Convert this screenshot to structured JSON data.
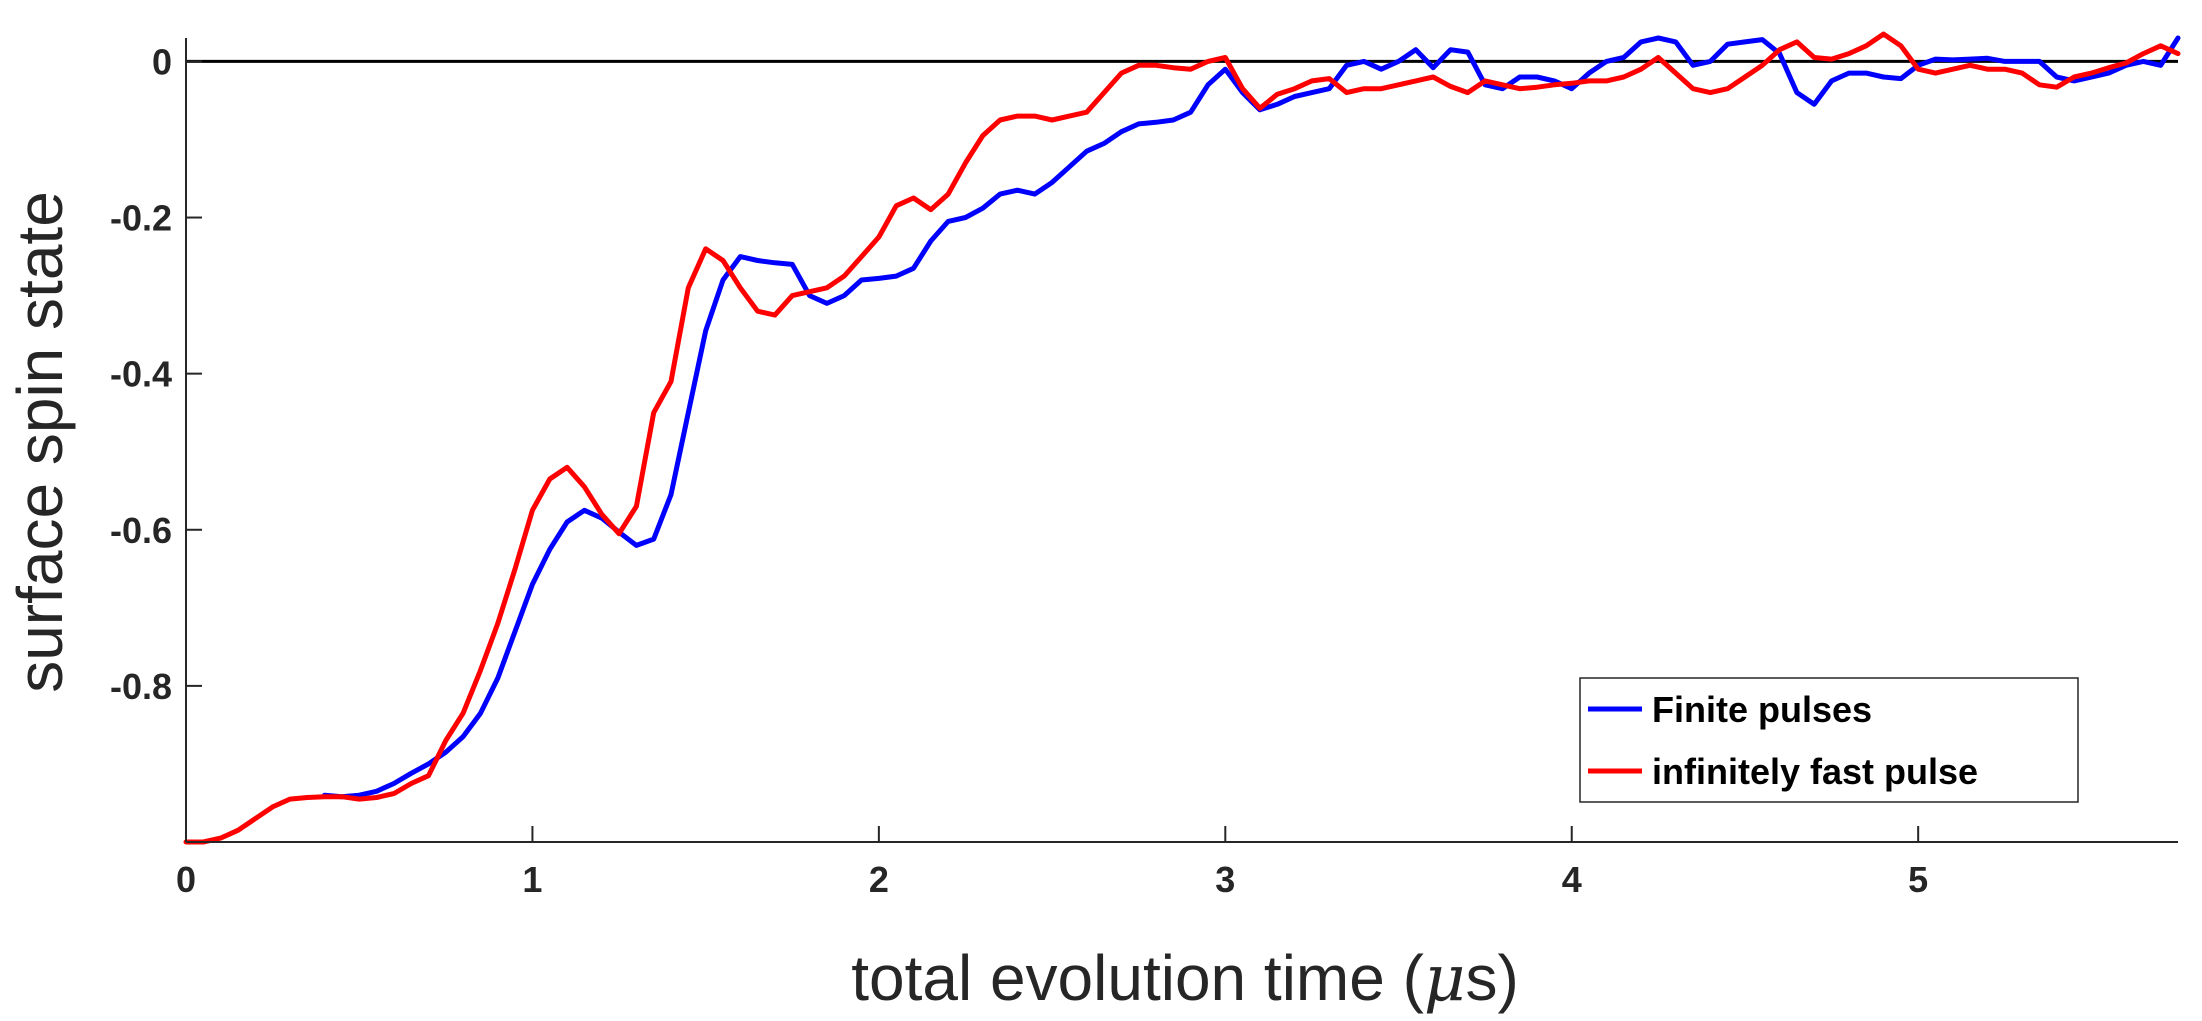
{
  "chart_data": {
    "type": "line",
    "xlabel_prefix": "total evolution time (",
    "xlabel_mu": "μ",
    "xlabel_suffix": "s)",
    "ylabel": "surface spin state",
    "xlim": [
      0,
      5.75
    ],
    "ylim": [
      -1.0,
      0.03
    ],
    "xticks": [
      0,
      1,
      2,
      3,
      4,
      5
    ],
    "xtick_labels": [
      "0",
      "1",
      "2",
      "3",
      "4",
      "5"
    ],
    "yticks": [
      0,
      -0.2,
      -0.4,
      -0.6,
      -0.8
    ],
    "ytick_labels": [
      "0",
      "-0.2",
      "-0.4",
      "-0.6",
      "-0.8"
    ],
    "reference_line_y": 0,
    "legend_position": "bottom-right",
    "series": [
      {
        "name": "Finite pulses",
        "color": "#0000ff",
        "x": [
          0.4,
          0.45,
          0.5,
          0.55,
          0.6,
          0.65,
          0.7,
          0.75,
          0.8,
          0.85,
          0.9,
          0.95,
          1.0,
          1.05,
          1.1,
          1.15,
          1.2,
          1.25,
          1.3,
          1.35,
          1.4,
          1.45,
          1.5,
          1.55,
          1.6,
          1.65,
          1.7,
          1.75,
          1.8,
          1.85,
          1.9,
          1.95,
          2.0,
          2.05,
          2.1,
          2.15,
          2.2,
          2.25,
          2.3,
          2.35,
          2.4,
          2.45,
          2.5,
          2.55,
          2.6,
          2.65,
          2.7,
          2.75,
          2.8,
          2.85,
          2.9,
          2.95,
          3.0,
          3.05,
          3.1,
          3.15,
          3.2,
          3.25,
          3.3,
          3.35,
          3.4,
          3.45,
          3.5,
          3.55,
          3.6,
          3.65,
          3.7,
          3.75,
          3.8,
          3.85,
          3.9,
          3.95,
          4.0,
          4.05,
          4.1,
          4.15,
          4.2,
          4.25,
          4.3,
          4.35,
          4.4,
          4.45,
          4.5,
          4.55,
          4.6,
          4.65,
          4.7,
          4.75,
          4.8,
          4.85,
          4.9,
          4.95,
          5.0,
          5.05,
          5.1,
          5.15,
          5.2,
          5.25,
          5.3,
          5.35,
          5.4,
          5.45,
          5.5,
          5.55,
          5.6,
          5.65,
          5.7,
          5.75
        ],
        "y": [
          -0.94,
          -0.942,
          -0.94,
          -0.935,
          -0.925,
          -0.912,
          -0.9,
          -0.885,
          -0.865,
          -0.835,
          -0.79,
          -0.73,
          -0.67,
          -0.625,
          -0.59,
          -0.575,
          -0.585,
          -0.603,
          -0.62,
          -0.612,
          -0.555,
          -0.45,
          -0.345,
          -0.28,
          -0.25,
          -0.255,
          -0.258,
          -0.26,
          -0.3,
          -0.31,
          -0.3,
          -0.28,
          -0.278,
          -0.275,
          -0.265,
          -0.23,
          -0.205,
          -0.2,
          -0.188,
          -0.17,
          -0.165,
          -0.17,
          -0.155,
          -0.135,
          -0.115,
          -0.105,
          -0.09,
          -0.08,
          -0.078,
          -0.075,
          -0.065,
          -0.03,
          -0.01,
          -0.04,
          -0.062,
          -0.055,
          -0.045,
          -0.04,
          -0.035,
          -0.005,
          0.0,
          -0.01,
          0.0,
          0.015,
          -0.008,
          0.015,
          0.012,
          -0.03,
          -0.035,
          -0.02,
          -0.02,
          -0.025,
          -0.035,
          -0.015,
          0.0,
          0.005,
          0.025,
          0.03,
          0.025,
          -0.005,
          0.0,
          0.022,
          0.025,
          0.028,
          0.01,
          -0.04,
          -0.055,
          -0.025,
          -0.015,
          -0.015,
          -0.02,
          -0.022,
          -0.005,
          0.003,
          0.002,
          0.003,
          0.004,
          0.0,
          0.0,
          0.0,
          -0.02,
          -0.025,
          -0.02,
          -0.015,
          -0.005,
          0.0,
          -0.005,
          0.03
        ]
      },
      {
        "name": "infinitely fast pulse",
        "color": "#ff0000",
        "x": [
          0.0,
          0.05,
          0.1,
          0.15,
          0.2,
          0.25,
          0.3,
          0.35,
          0.4,
          0.45,
          0.5,
          0.55,
          0.6,
          0.65,
          0.7,
          0.75,
          0.8,
          0.85,
          0.9,
          0.95,
          1.0,
          1.05,
          1.1,
          1.15,
          1.2,
          1.25,
          1.3,
          1.35,
          1.4,
          1.45,
          1.5,
          1.55,
          1.6,
          1.65,
          1.7,
          1.75,
          1.8,
          1.85,
          1.9,
          1.95,
          2.0,
          2.05,
          2.1,
          2.15,
          2.2,
          2.25,
          2.3,
          2.35,
          2.4,
          2.45,
          2.5,
          2.55,
          2.6,
          2.65,
          2.7,
          2.75,
          2.8,
          2.85,
          2.9,
          2.95,
          3.0,
          3.05,
          3.1,
          3.15,
          3.2,
          3.25,
          3.3,
          3.35,
          3.4,
          3.45,
          3.5,
          3.55,
          3.6,
          3.65,
          3.7,
          3.75,
          3.8,
          3.85,
          3.9,
          3.95,
          4.0,
          4.05,
          4.1,
          4.15,
          4.2,
          4.25,
          4.3,
          4.35,
          4.4,
          4.45,
          4.5,
          4.55,
          4.6,
          4.65,
          4.7,
          4.75,
          4.8,
          4.85,
          4.9,
          4.95,
          5.0,
          5.05,
          5.1,
          5.15,
          5.2,
          5.25,
          5.3,
          5.35,
          5.4,
          5.45,
          5.5,
          5.55,
          5.6,
          5.65,
          5.7,
          5.75
        ],
        "y": [
          -1.0,
          -1.0,
          -0.995,
          -0.985,
          -0.97,
          -0.955,
          -0.945,
          -0.943,
          -0.942,
          -0.942,
          -0.945,
          -0.943,
          -0.938,
          -0.925,
          -0.915,
          -0.87,
          -0.835,
          -0.78,
          -0.72,
          -0.65,
          -0.575,
          -0.535,
          -0.52,
          -0.545,
          -0.58,
          -0.605,
          -0.57,
          -0.45,
          -0.41,
          -0.29,
          -0.24,
          -0.255,
          -0.29,
          -0.32,
          -0.325,
          -0.3,
          -0.295,
          -0.29,
          -0.275,
          -0.25,
          -0.225,
          -0.185,
          -0.175,
          -0.19,
          -0.17,
          -0.13,
          -0.095,
          -0.075,
          -0.07,
          -0.07,
          -0.075,
          -0.07,
          -0.065,
          -0.04,
          -0.015,
          -0.005,
          -0.005,
          -0.008,
          -0.01,
          0.0,
          0.005,
          -0.035,
          -0.06,
          -0.042,
          -0.035,
          -0.025,
          -0.022,
          -0.04,
          -0.035,
          -0.035,
          -0.03,
          -0.025,
          -0.02,
          -0.032,
          -0.04,
          -0.025,
          -0.03,
          -0.035,
          -0.033,
          -0.03,
          -0.028,
          -0.025,
          -0.025,
          -0.02,
          -0.01,
          0.005,
          -0.015,
          -0.035,
          -0.04,
          -0.035,
          -0.02,
          -0.005,
          0.015,
          0.025,
          0.005,
          0.003,
          0.01,
          0.02,
          0.035,
          0.02,
          -0.01,
          -0.015,
          -0.01,
          -0.005,
          -0.01,
          -0.01,
          -0.015,
          -0.03,
          -0.033,
          -0.02,
          -0.015,
          -0.008,
          -0.002,
          0.01,
          0.02,
          0.01
        ]
      }
    ]
  }
}
